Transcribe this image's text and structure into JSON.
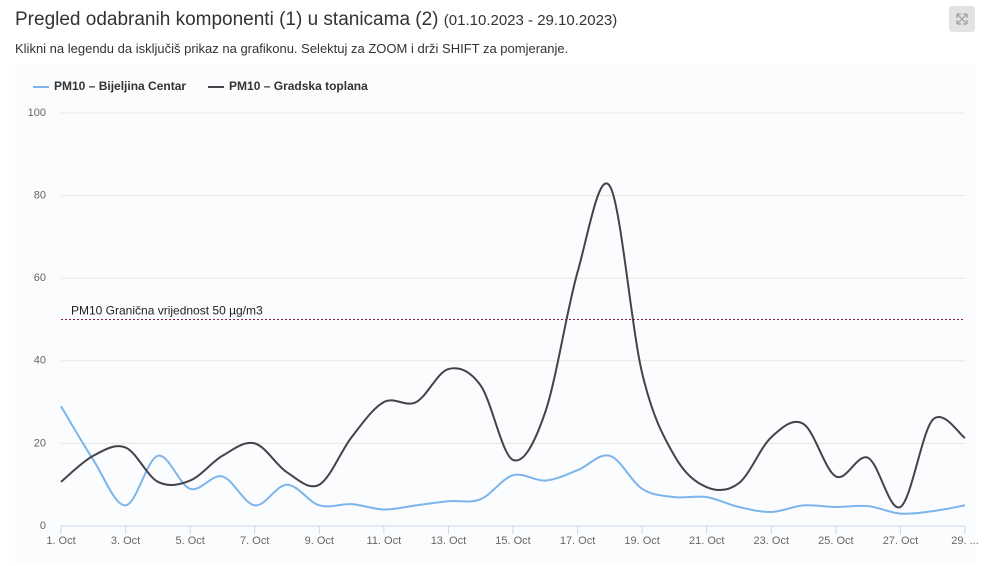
{
  "chart_data": {
    "type": "line",
    "title": "Pregled odabranih komponenti (1) u stanicama (2)",
    "date_range": "(01.10.2023 - 29.10.2023)",
    "subtitle": "Klikni na legendu da isključiš prikaz na grafikonu. Selektuj za ZOOM i drži SHIFT za pomjeranje.",
    "categories": [
      "1. Oct",
      null,
      "3. Oct",
      null,
      "5. Oct",
      null,
      "7. Oct",
      null,
      "9. Oct",
      null,
      "11. Oct",
      null,
      "13. Oct",
      null,
      "15. Oct",
      null,
      "17. Oct",
      null,
      "19. Oct",
      null,
      "21. Oct",
      null,
      "23. Oct",
      null,
      "25. Oct",
      null,
      "27. Oct",
      null,
      "29. ..."
    ],
    "series": [
      {
        "name": "PM10 – Bijeljina Centar",
        "color": "#7cb5ec",
        "values": [
          29,
          16,
          5,
          17,
          9,
          12,
          5,
          10,
          5,
          5.3,
          4,
          5,
          6,
          6.5,
          12.3,
          11,
          13.5,
          17,
          9,
          7,
          7,
          4.6,
          3.4,
          5,
          4.6,
          4.8,
          3,
          3.6,
          5
        ]
      },
      {
        "name": "PM10 – Gradska toplana",
        "color": "#434348",
        "values": [
          10.7,
          17,
          19,
          10.7,
          11,
          17,
          20,
          13,
          10,
          21.5,
          30,
          30,
          38,
          34,
          16,
          27.6,
          61.5,
          82.3,
          37,
          17,
          9.4,
          10.4,
          21.5,
          24.7,
          12,
          16.5,
          4.6,
          25.7,
          21.3
        ]
      }
    ],
    "plot_line": {
      "value": 50,
      "label": "PM10 Granična vrijednost 50 µg/m3",
      "color": "#8b1a4a"
    },
    "ylim": [
      0,
      100
    ],
    "yticks": [
      0,
      20,
      40,
      60,
      80,
      100
    ],
    "grid": true,
    "legend": "top-left"
  }
}
